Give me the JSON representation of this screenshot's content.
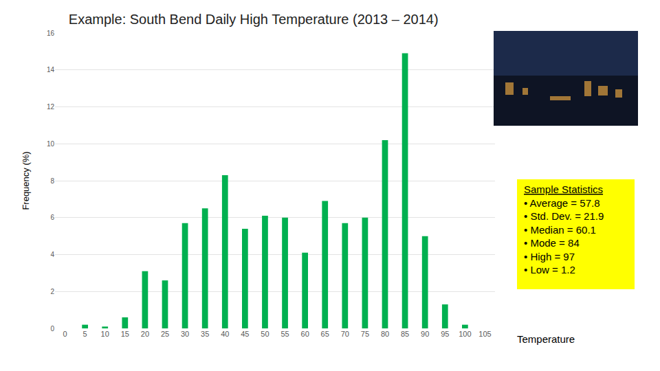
{
  "chart_data": {
    "type": "bar",
    "title": "Example: South Bend Daily High Temperature (2013 – 2014)",
    "xlabel": "Temperature",
    "ylabel": "Frequency (%)",
    "categories": [
      "0",
      "5",
      "10",
      "15",
      "20",
      "25",
      "30",
      "35",
      "40",
      "45",
      "50",
      "55",
      "60",
      "65",
      "70",
      "75",
      "80",
      "85",
      "90",
      "95",
      "100",
      "105"
    ],
    "values": [
      0,
      0.2,
      0.1,
      0.6,
      3.1,
      2.6,
      5.7,
      6.5,
      8.3,
      5.4,
      6.1,
      6.0,
      4.1,
      6.9,
      5.7,
      6.0,
      10.2,
      14.9,
      5.0,
      1.3,
      0.2,
      0
    ],
    "color": "#00b050",
    "ylim": [
      0,
      16
    ],
    "yticks": [
      0,
      2,
      4,
      6,
      8,
      10,
      12,
      14,
      16
    ],
    "grid": true,
    "annotations": [
      {
        "title": "Sample Statistics",
        "lines": [
          "• Average = 57.8",
          "• Std. Dev. = 21.9",
          "• Median = 60.1",
          "• Mode = 84",
          "• High = 97",
          "• Low = 1.2"
        ]
      }
    ]
  }
}
